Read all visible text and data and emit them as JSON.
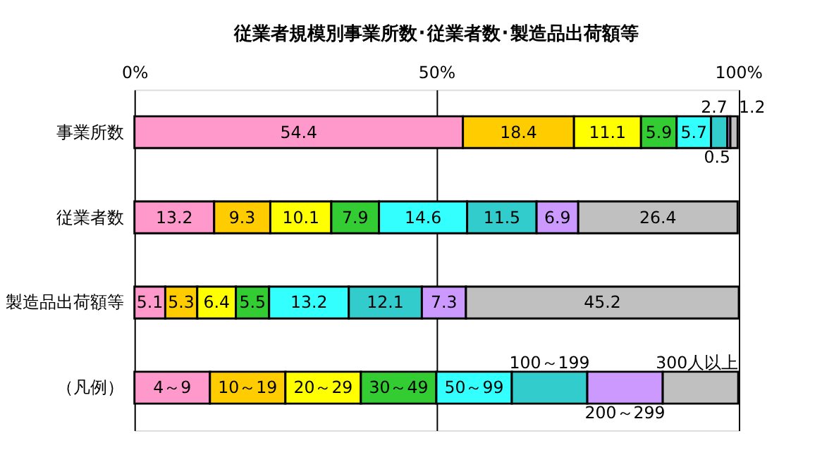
{
  "chart_data": {
    "type": "bar",
    "orientation": "horizontal",
    "stacked": true,
    "title": "従業者規模別事業所数･従業者数･製造品出荷額等",
    "categories": [
      "事業所数",
      "従業者数",
      "製造品出荷額等",
      "（凡例）"
    ],
    "xlim": [
      0,
      100.1
    ],
    "xticks": [
      {
        "value": 0,
        "label": "0%"
      },
      {
        "value": 50,
        "label": "50%"
      },
      {
        "value": 100,
        "label": "100%"
      }
    ],
    "grid": "x",
    "series": [
      {
        "name": "4～9",
        "color": "#ff99cc",
        "values": [
          54.4,
          13.2,
          5.1,
          12.5
        ],
        "value_labels": [
          "54.4",
          "13.2",
          "5.1",
          null
        ]
      },
      {
        "name": "10～19",
        "color": "#ffcc00",
        "values": [
          18.4,
          9.3,
          5.3,
          12.5
        ],
        "value_labels": [
          "18.4",
          "9.3",
          "5.3",
          null
        ]
      },
      {
        "name": "20～29",
        "color": "#ffff00",
        "values": [
          11.1,
          10.1,
          6.4,
          12.5
        ],
        "value_labels": [
          "11.1",
          "10.1",
          "6.4",
          null
        ]
      },
      {
        "name": "30～49",
        "color": "#33cc33",
        "values": [
          5.9,
          7.9,
          5.5,
          12.5
        ],
        "value_labels": [
          "5.9",
          "7.9",
          "5.5",
          null
        ]
      },
      {
        "name": "50～99",
        "color": "#33ffff",
        "values": [
          5.7,
          14.6,
          13.2,
          12.5
        ],
        "value_labels": [
          "5.7",
          "14.6",
          "13.2",
          null
        ]
      },
      {
        "name": "100～199",
        "color": "#33cccc",
        "values": [
          2.7,
          11.5,
          12.1,
          12.5
        ],
        "value_labels": [
          "2.7",
          "11.5",
          "12.1",
          null
        ]
      },
      {
        "name": "200～299",
        "color": "#cc99ff",
        "values": [
          0.5,
          6.9,
          7.3,
          12.5
        ],
        "value_labels": [
          "0.5",
          "6.9",
          "7.3",
          null
        ]
      },
      {
        "name": "300人以上",
        "color": "#c0c0c0",
        "values": [
          1.2,
          26.4,
          45.2,
          12.5
        ],
        "value_labels": [
          "1.2",
          "26.4",
          "45.2",
          null
        ]
      }
    ]
  }
}
